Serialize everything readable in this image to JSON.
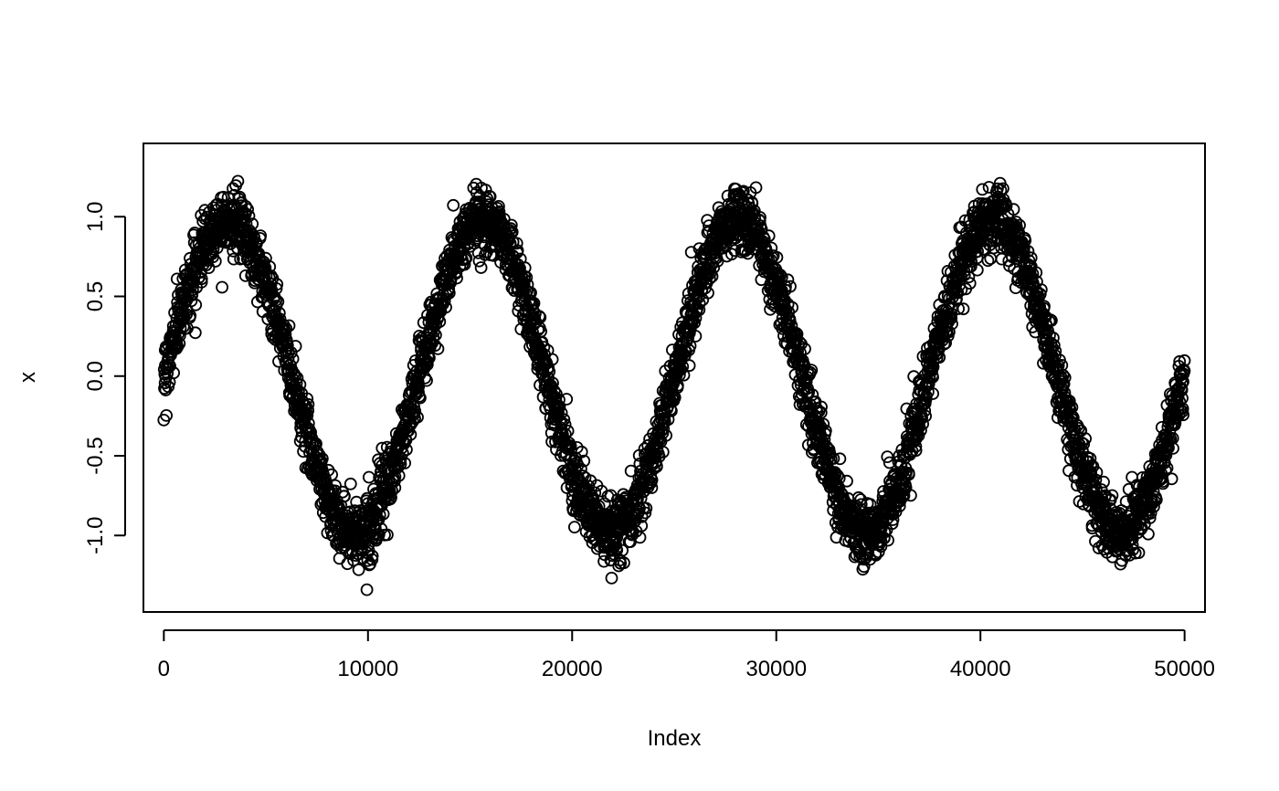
{
  "chart_data": {
    "type": "scatter",
    "title": "",
    "xlabel": "Index",
    "ylabel": "x",
    "xlim": [
      -1000,
      51000
    ],
    "ylim": [
      -1.48,
      1.46
    ],
    "x_ticks": [
      0,
      10000,
      20000,
      30000,
      40000,
      50000
    ],
    "x_tick_labels": [
      "0",
      "10000",
      "20000",
      "30000",
      "40000",
      "50000"
    ],
    "y_ticks": [
      -1.0,
      -0.5,
      0.0,
      0.5,
      1.0
    ],
    "y_tick_labels": [
      "-1.0",
      "-0.5",
      "0.0",
      "0.5",
      "1.0"
    ],
    "grid": false,
    "legend": "none",
    "marker": "open-circle",
    "marker_color": "#000000",
    "series": [
      {
        "n_points": 50000,
        "x": [
          0,
          1000,
          2000,
          3000,
          3125,
          4000,
          5000,
          6000,
          7000,
          8000,
          9000,
          9375,
          10000,
          11000,
          12000,
          13000,
          14000,
          15000,
          15625,
          16000,
          17000,
          18000,
          19000,
          20000,
          21000,
          21875,
          22000,
          23000,
          24000,
          25000,
          26000,
          27000,
          28000,
          28125,
          29000,
          30000,
          31000,
          32000,
          33000,
          34000,
          34375,
          35000,
          36000,
          37000,
          38000,
          39000,
          40000,
          40625,
          41000,
          42000,
          43000,
          44000,
          45000,
          46000,
          46875,
          47000,
          48000,
          49000,
          50000
        ],
        "y": [
          0.0,
          0.48,
          0.84,
          1.0,
          1.0,
          0.9,
          0.59,
          0.13,
          -0.35,
          -0.77,
          -0.99,
          -1.0,
          -0.95,
          -0.68,
          -0.25,
          0.25,
          0.68,
          0.95,
          1.0,
          0.99,
          0.77,
          0.35,
          -0.13,
          -0.59,
          -0.9,
          -1.0,
          -1.0,
          -0.84,
          -0.48,
          0.0,
          0.48,
          0.84,
          1.0,
          1.0,
          0.9,
          0.59,
          0.13,
          -0.35,
          -0.77,
          -0.99,
          -1.0,
          -0.95,
          -0.68,
          -0.25,
          0.25,
          0.68,
          0.95,
          1.0,
          0.99,
          0.77,
          0.35,
          -0.13,
          -0.59,
          -0.9,
          -1.0,
          -1.0,
          -0.84,
          -0.48,
          0.0
        ],
        "noise_sd": 0.1
      }
    ]
  }
}
